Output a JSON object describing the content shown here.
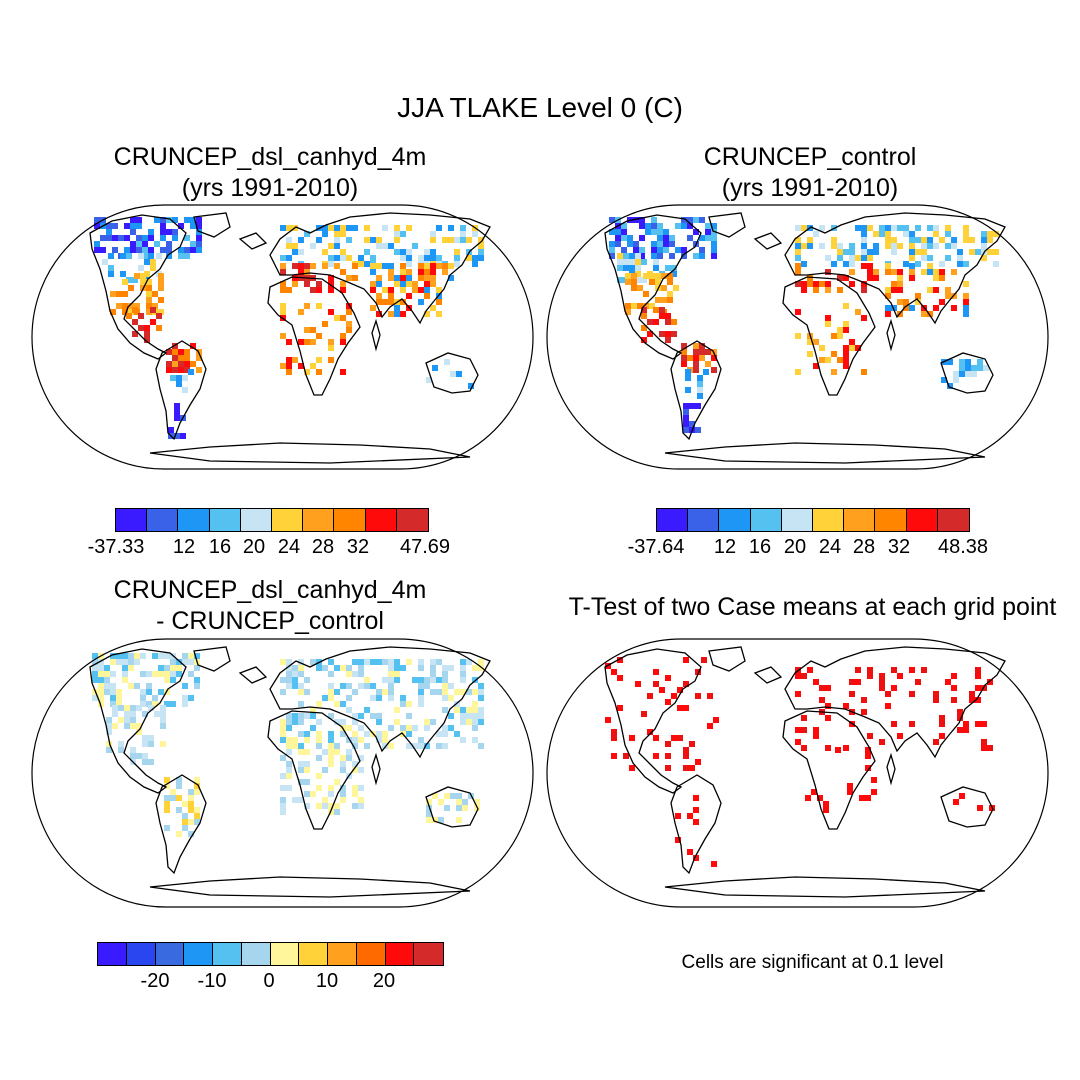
{
  "title": "JJA TLAKE Level 0 (C)",
  "panels": [
    {
      "title_line1": "CRUNCEP_dsl_canhyd_4m",
      "title_line2": "(yrs 1991-2010)"
    },
    {
      "title_line1": "CRUNCEP_control",
      "title_line2": "(yrs 1991-2010)"
    },
    {
      "title_line1": "CRUNCEP_dsl_canhyd_4m",
      "title_line2": "- CRUNCEP_control"
    },
    {
      "title_line1": "T-Test of two Case means at each grid point"
    }
  ],
  "colorbars": [
    {
      "colors": [
        "#3a1aff",
        "#3a62e8",
        "#1e96f5",
        "#55c1f0",
        "#c6e4f4",
        "#ffd23a",
        "#ffa01e",
        "#ff8400",
        "#ff0a0a",
        "#d42a2a"
      ],
      "labels": [
        "-37.33",
        "12",
        "16",
        "20",
        "24",
        "28",
        "32",
        "47.69"
      ]
    },
    {
      "colors": [
        "#3a1aff",
        "#3a62e8",
        "#1e96f5",
        "#55c1f0",
        "#c6e4f4",
        "#ffd23a",
        "#ffa01e",
        "#ff8400",
        "#ff0a0a",
        "#d42a2a"
      ],
      "labels": [
        "-37.64",
        "12",
        "16",
        "20",
        "24",
        "28",
        "32",
        "48.38"
      ]
    },
    {
      "colors": [
        "#3a1aff",
        "#2a46f0",
        "#3a6ae0",
        "#1e96f5",
        "#55c1f0",
        "#a6d6ee",
        "#fff59a",
        "#ffd23a",
        "#ffa01e",
        "#ff6a00",
        "#ff0a0a",
        "#d42a2a"
      ],
      "labels": [
        "-20",
        "-10",
        "0",
        "10",
        "20"
      ]
    }
  ],
  "significance_note": "Cells are significant at 0.1 level"
}
